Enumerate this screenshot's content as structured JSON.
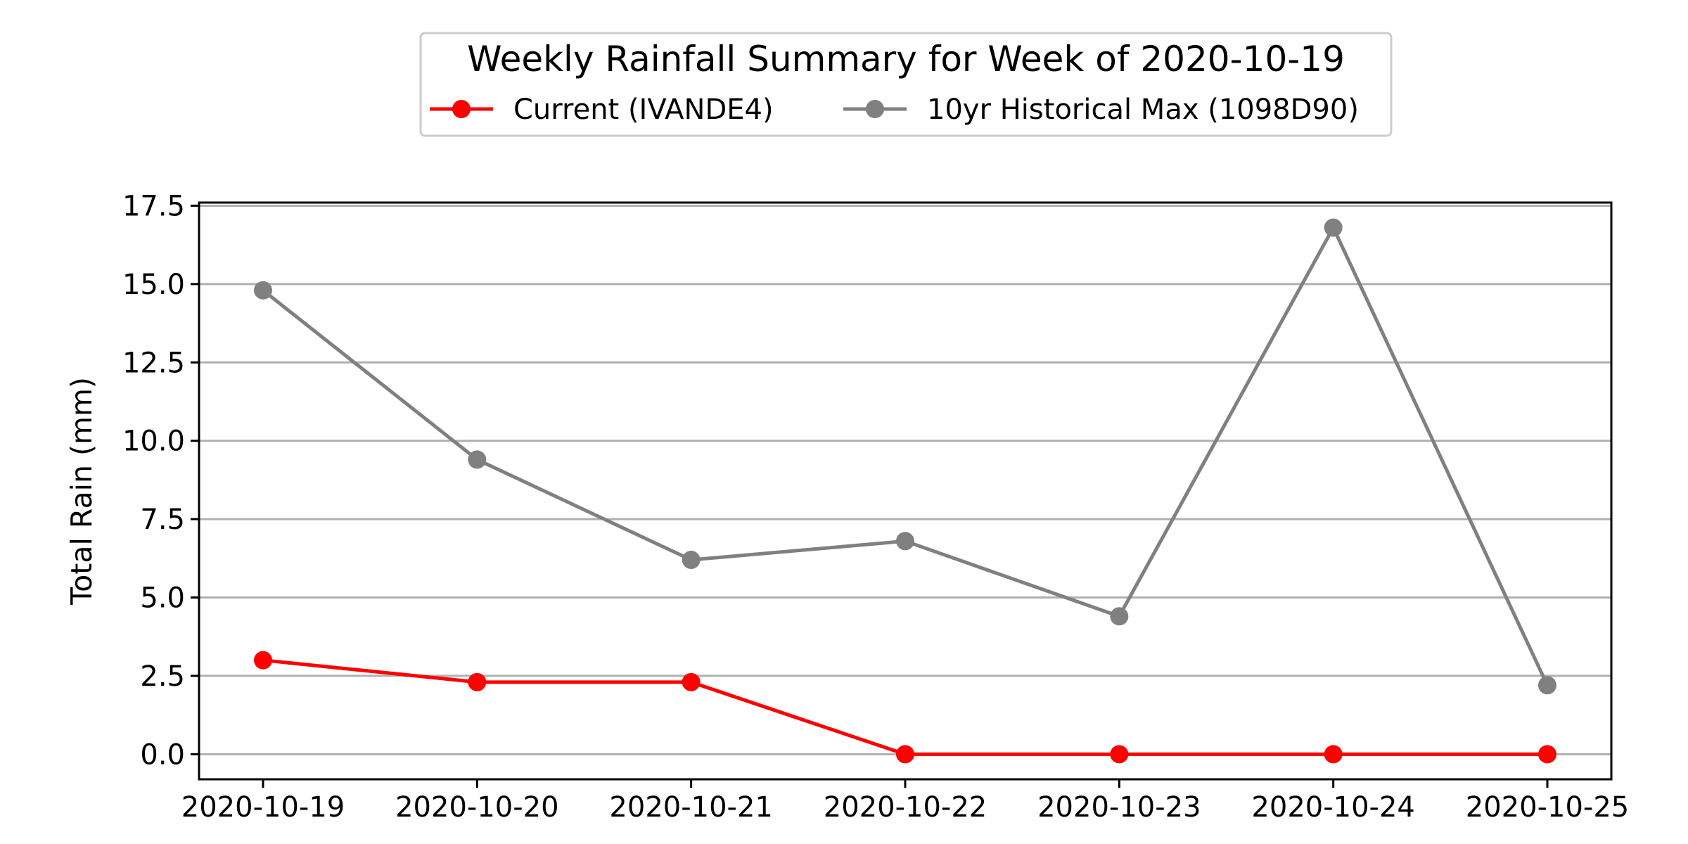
{
  "chart_data": {
    "type": "line",
    "title": "",
    "legend_title": "Weekly Rainfall Summary for Week of 2020-10-19",
    "legend_position": "top-center",
    "xlabel": "",
    "ylabel": "Total Rain (mm)",
    "x": [
      "2020-10-19",
      "2020-10-20",
      "2020-10-21",
      "2020-10-22",
      "2020-10-23",
      "2020-10-24",
      "2020-10-25"
    ],
    "yticks": [
      "0.0",
      "2.5",
      "5.0",
      "7.5",
      "10.0",
      "12.5",
      "15.0",
      "17.5"
    ],
    "ylim": [
      -0.8,
      17.6
    ],
    "grid": "horizontal",
    "series": [
      {
        "name": "Current (IVANDE4)",
        "color": "#ff0000",
        "marker": "circle",
        "values": [
          3.0,
          2.3,
          2.3,
          0.0,
          0.0,
          0.0,
          0.0
        ]
      },
      {
        "name": "10yr Historical Max (1098D90)",
        "color": "#808080",
        "marker": "circle",
        "values": [
          14.8,
          9.4,
          6.2,
          6.8,
          4.4,
          16.8,
          2.2
        ]
      }
    ]
  }
}
